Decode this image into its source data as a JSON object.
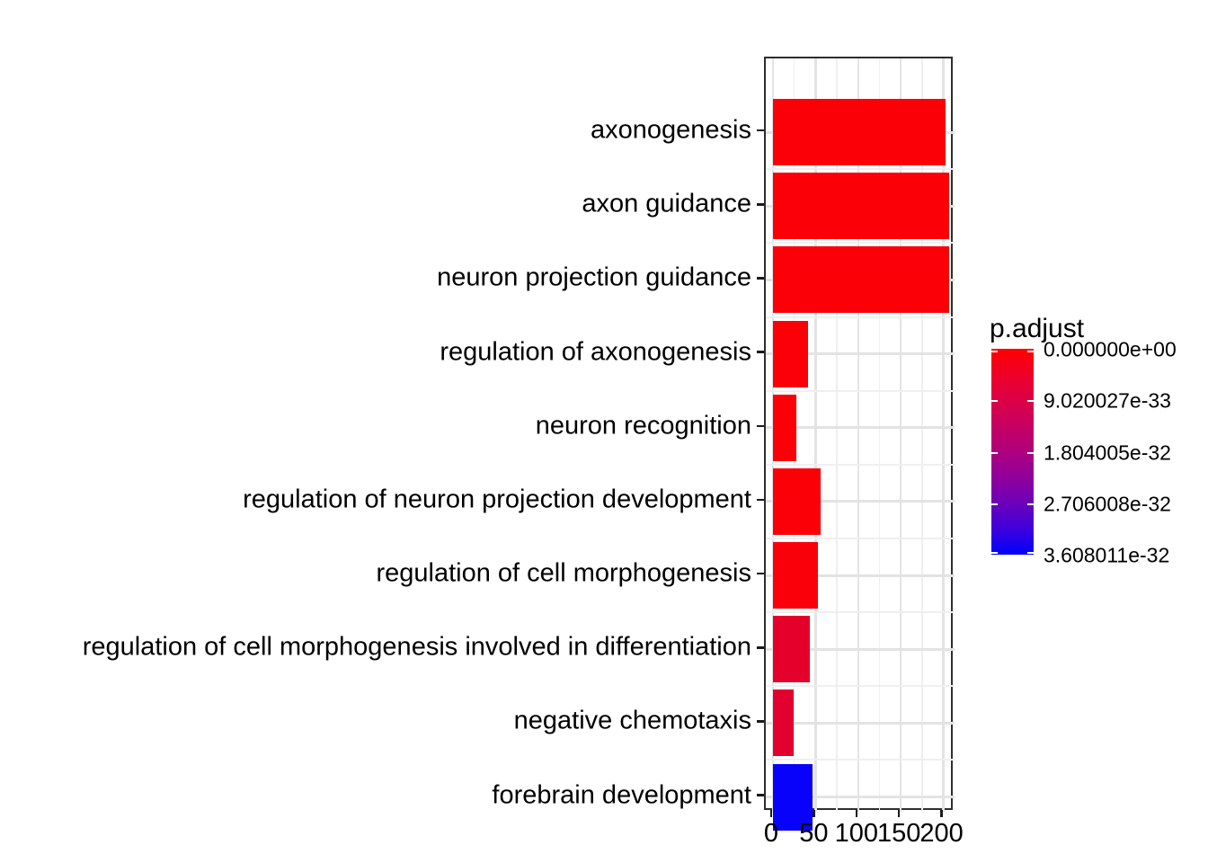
{
  "chart_data": {
    "type": "bar",
    "orientation": "horizontal",
    "title": "",
    "xlabel": "",
    "ylabel": "",
    "categories": [
      "axonogenesis",
      "axon guidance",
      "neuron projection guidance",
      "regulation of axonogenesis",
      "neuron recognition",
      "regulation of neuron projection development",
      "regulation of cell morphogenesis",
      "regulation of cell morphogenesis involved in differentiation",
      "negative chemotaxis",
      "forebrain development"
    ],
    "values": [
      203,
      207,
      207,
      41,
      27,
      56,
      53,
      43,
      24,
      46
    ],
    "bar_colors": [
      "#fb0007",
      "#fb0007",
      "#fb0007",
      "#fb0007",
      "#fb0007",
      "#fb0007",
      "#fa000b",
      "#e4002b",
      "#e2002e",
      "#0902fb"
    ],
    "xlim": [
      -10.4,
      217.4
    ],
    "x_ticks": [
      0,
      50,
      100,
      150,
      200
    ],
    "x_tick_labels": [
      "0",
      "50",
      "100",
      "150",
      "200"
    ],
    "x_minor_ticks": [
      25,
      75,
      125,
      175
    ],
    "grid": "major+minor",
    "legend_position": "right",
    "legend": {
      "title": "p.adjust",
      "type": "colorbar",
      "tick_labels": [
        "0.000000e+00",
        "9.020027e-33",
        "1.804005e-32",
        "2.706008e-32",
        "3.608011e-32"
      ],
      "gradient_stops": [
        "#ff0000",
        "#ef0028",
        "#dc0046",
        "#c70062",
        "#ae007e",
        "#90009b",
        "#6c00ba",
        "#3e00db",
        "#0000ff"
      ],
      "tick_color": "#ffffff"
    },
    "style": {
      "background": "#ffffff",
      "panel_background": "#ffffff",
      "panel_border": "#2e2e2e",
      "grid_major": "#e3e3e3",
      "grid_minor": "#efefef",
      "axis_tick": "#1a1a1a",
      "axis_text": "#000000"
    }
  }
}
